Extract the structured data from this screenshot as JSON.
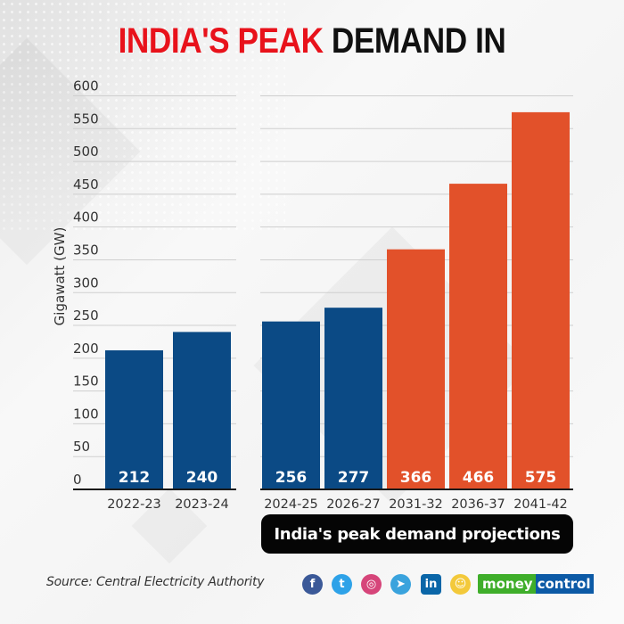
{
  "header": {
    "title_highlight": "INDIA'S PEAK",
    "title_rest": "DEMAND IN"
  },
  "colors": {
    "title_red": "#e8121b",
    "actual_blue": "#0b4a85",
    "projection_orange": "#e2512a",
    "pill_bg": "#050505"
  },
  "chart_data": {
    "type": "bar",
    "title": "INDIA'S PEAK DEMAND IN",
    "xlabel": "",
    "ylabel": "Gigawatt (GW)",
    "ylim": [
      0,
      600
    ],
    "yticks": [
      0,
      50,
      100,
      150,
      200,
      250,
      300,
      350,
      400,
      450,
      500,
      550,
      600
    ],
    "grid": true,
    "groups": [
      {
        "name": "historical",
        "categories": [
          "2022-23",
          "2023-24"
        ],
        "values": [
          212,
          240
        ],
        "colors": [
          "#0b4a85",
          "#0b4a85"
        ]
      },
      {
        "name": "India's peak demand projections",
        "categories": [
          "2024-25",
          "2026-27",
          "2031-32",
          "2036-37",
          "2041-42"
        ],
        "values": [
          256,
          277,
          366,
          466,
          575
        ],
        "colors": [
          "#0b4a85",
          "#0b4a85",
          "#e2512a",
          "#e2512a",
          "#e2512a"
        ]
      }
    ],
    "group_label": "India's peak demand projections"
  },
  "footer": {
    "source": "Source: Central Electricity Authority",
    "social": [
      {
        "name": "facebook",
        "glyph": "f",
        "color": "#3b5998"
      },
      {
        "name": "twitter",
        "glyph": "t",
        "color": "#2ea2e8"
      },
      {
        "name": "instagram",
        "glyph": "◎",
        "color": "#d6457a"
      },
      {
        "name": "telegram",
        "glyph": "➤",
        "color": "#3aa3dd"
      },
      {
        "name": "linkedin",
        "glyph": "in",
        "color": "#0a66a8"
      },
      {
        "name": "snapchat",
        "glyph": "☺",
        "color": "#f3c93b"
      }
    ],
    "logo_part1": "money",
    "logo_part2": "control"
  }
}
